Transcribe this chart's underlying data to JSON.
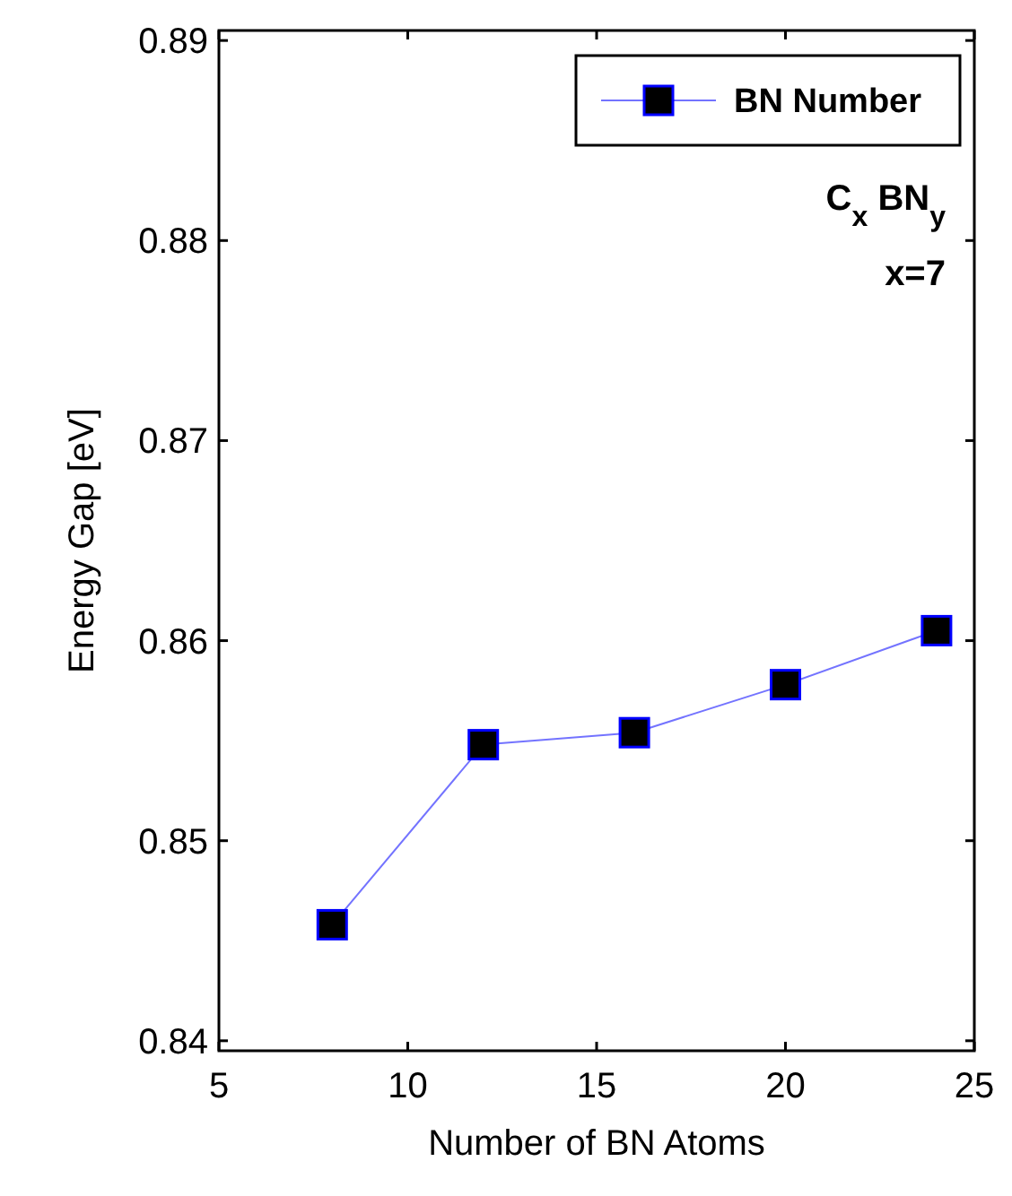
{
  "chart_data": {
    "type": "line",
    "xlabel": "Number of BN Atoms",
    "ylabel": "Energy Gap [eV]",
    "x": [
      8,
      12,
      16,
      20,
      24
    ],
    "series": [
      {
        "name": "BN Number",
        "color": "#0000ff",
        "values": [
          0.8458,
          0.8548,
          0.8554,
          0.8578,
          0.8605
        ]
      }
    ],
    "xlim": [
      5,
      25
    ],
    "xticks": [
      5,
      10,
      15,
      20,
      25
    ],
    "ylim": [
      0.8395,
      0.8905
    ],
    "yticks": [
      0.84,
      0.85,
      0.86,
      0.87,
      0.88,
      0.89
    ],
    "marker": "square",
    "legend": "top right",
    "grid": false,
    "annotations": [
      "C$_{x}$ BN$_{y}$",
      "x=7"
    ]
  }
}
